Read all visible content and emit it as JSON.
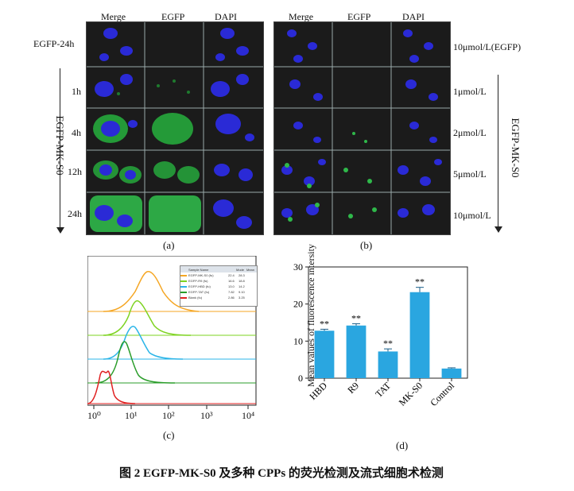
{
  "panel_a": {
    "columns": [
      "Merge",
      "EGFP",
      "DAPI"
    ],
    "top_row_label": "EGFP-24h",
    "side_label": "EGFP-MK-S0",
    "row_labels": [
      "1h",
      "4h",
      "12h",
      "24h"
    ],
    "caption": "(a)"
  },
  "panel_b": {
    "columns": [
      "Merge",
      "EGFP",
      "DAPI"
    ],
    "top_row_label": "10μmol/L(EGFP)",
    "side_label": "EGFP-MK-S0",
    "row_labels": [
      "1μmol/L",
      "2μmol/L",
      "5μmol/L",
      "10μmol/L"
    ],
    "caption": "(b)"
  },
  "panel_c": {
    "caption": "(c)",
    "x_ticks": [
      "10⁰",
      "10¹",
      "10²",
      "10³",
      "10⁴"
    ],
    "legend_header": [
      "Sample Name",
      "Mode",
      "Mean"
    ],
    "legend_rows": [
      {
        "name": "EGFP-MK-S0 (fu)",
        "mode": "22.4",
        "mean": "28.3",
        "color": "#f5a623"
      },
      {
        "name": "EGFP-R9 (fu)",
        "mode": "16.6",
        "mean": "18.8",
        "color": "#7ed321"
      },
      {
        "name": "EGFP-HBD (fu)",
        "mode": "13.0",
        "mean": "14.2",
        "color": "#2bb5e8"
      },
      {
        "name": "EGFP-TAT (fu)",
        "mode": "7.82",
        "mean": "9.10",
        "color": "#2a9d2a"
      },
      {
        "name": "Blank (fu)",
        "mode": "2.86",
        "mean": "3.25",
        "color": "#e02020"
      }
    ]
  },
  "chart_data": {
    "type": "bar",
    "categories": [
      "HBD",
      "R9",
      "TAT",
      "MK-S0",
      "Control"
    ],
    "values": [
      12.8,
      14.2,
      7.2,
      23.2,
      2.6
    ],
    "errors": [
      0.4,
      0.5,
      0.7,
      1.3,
      0.2
    ],
    "annotations": [
      "**",
      "**",
      "**",
      "**",
      ""
    ],
    "ylabel": "Mean values of fluorescence intersity",
    "ylim": [
      0,
      30
    ],
    "yticks": [
      0,
      10,
      20,
      30
    ],
    "bar_color": "#2aa6e0",
    "caption": "(d)"
  },
  "figure_title": "图 2   EGFP-MK-S0 及多种 CPPs 的荧光检测及流式细胞术检测"
}
